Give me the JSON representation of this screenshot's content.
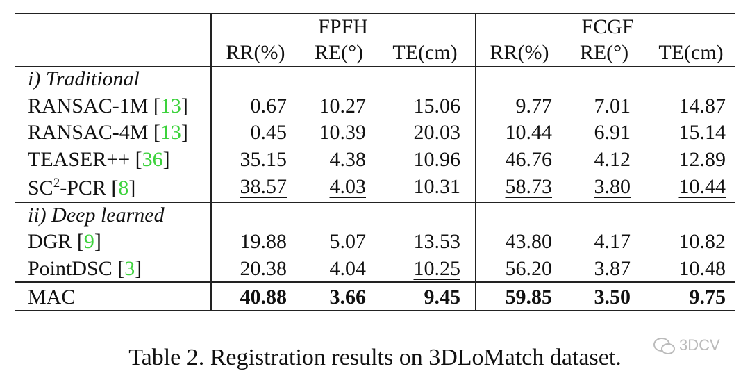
{
  "table": {
    "group_headers": [
      "FPFH",
      "FCGF"
    ],
    "column_headers": [
      "RR(%)",
      "RE(°)",
      "TE(cm)",
      "RR(%)",
      "RE(°)",
      "TE(cm)"
    ],
    "sections": [
      {
        "label": "i) Traditional",
        "rows": [
          {
            "method": [
              {
                "text": "RANSAC-1M ["
              },
              {
                "text": "13",
                "style": "cite"
              },
              {
                "text": "]"
              }
            ],
            "values": [
              "0.67",
              "10.27",
              "15.06",
              "9.77",
              "7.01",
              "14.87"
            ],
            "underline": []
          },
          {
            "method": [
              {
                "text": "RANSAC-4M ["
              },
              {
                "text": "13",
                "style": "cite"
              },
              {
                "text": "]"
              }
            ],
            "values": [
              "0.45",
              "10.39",
              "20.03",
              "10.44",
              "6.91",
              "15.14"
            ],
            "underline": []
          },
          {
            "method": [
              {
                "text": "TEASER++ ["
              },
              {
                "text": "36",
                "style": "cite"
              },
              {
                "text": "]"
              }
            ],
            "values": [
              "35.15",
              "4.38",
              "10.96",
              "46.76",
              "4.12",
              "12.89"
            ],
            "underline": []
          },
          {
            "method": [
              {
                "text": "SC"
              },
              {
                "text": "2",
                "style": "sup"
              },
              {
                "text": "-PCR ["
              },
              {
                "text": "8",
                "style": "cite"
              },
              {
                "text": "]"
              }
            ],
            "values": [
              "38.57",
              "4.03",
              "10.31",
              "58.73",
              "3.80",
              "10.44"
            ],
            "underline": [
              0,
              1,
              3,
              4,
              5
            ]
          }
        ]
      },
      {
        "label": "ii) Deep learned",
        "rows": [
          {
            "method": [
              {
                "text": "DGR ["
              },
              {
                "text": "9",
                "style": "cite"
              },
              {
                "text": "]"
              }
            ],
            "values": [
              "19.88",
              "5.07",
              "13.53",
              "43.80",
              "4.17",
              "10.82"
            ],
            "underline": []
          },
          {
            "method": [
              {
                "text": "PointDSC ["
              },
              {
                "text": "3",
                "style": "cite"
              },
              {
                "text": "]"
              }
            ],
            "values": [
              "20.38",
              "4.04",
              "10.25",
              "56.20",
              "3.87",
              "10.48"
            ],
            "underline": [
              2
            ]
          }
        ]
      },
      {
        "rows": [
          {
            "method": [
              {
                "text": "MAC"
              }
            ],
            "values": [
              "40.88",
              "3.66",
              "9.45",
              "59.85",
              "3.50",
              "9.75"
            ],
            "underline": [],
            "bold": true
          }
        ]
      }
    ],
    "caption": "Table 2. Registration results on 3DLoMatch dataset.",
    "watermark": "3DCV"
  }
}
